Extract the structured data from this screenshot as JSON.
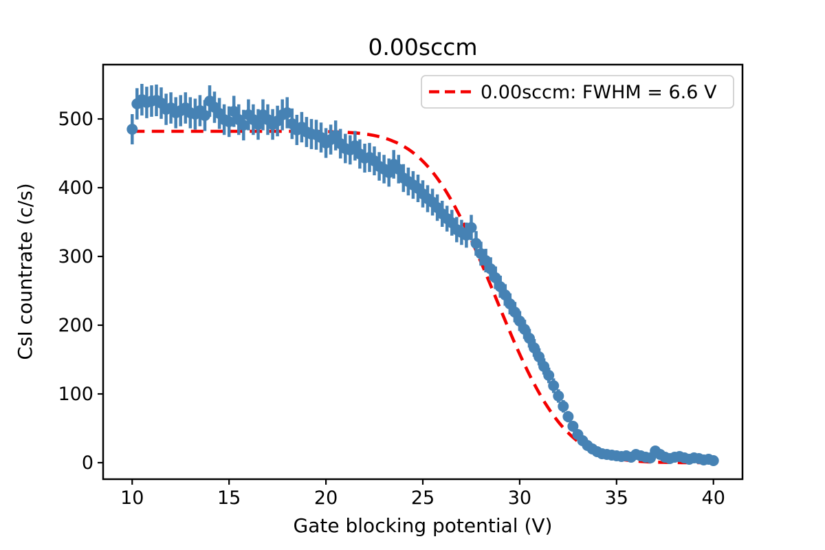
{
  "figure": {
    "title": "0.00sccm",
    "xlabel": "Gate blocking potential (V)",
    "ylabel": "CsI countrate (c/s)",
    "legend": {
      "label": "0.00sccm: FWHM = 6.6 V",
      "line_color": "#f40000",
      "line_style": "dashed",
      "position": "upper right"
    }
  },
  "colors": {
    "data_points": "#4682B4",
    "fit_line": "#f40000",
    "axes": "#000000",
    "background": "#ffffff",
    "legend_border": "#cfcfcf"
  },
  "chart_data": {
    "type": "scatter",
    "title": "0.00sccm",
    "xlabel": "Gate blocking potential (V)",
    "ylabel": "CsI countrate (c/s)",
    "xlim": [
      8.5,
      41.5
    ],
    "ylim": [
      -24,
      579
    ],
    "xticks": [
      10,
      15,
      20,
      25,
      30,
      35,
      40
    ],
    "yticks": [
      0,
      100,
      200,
      300,
      400,
      500
    ],
    "grid": false,
    "legend_position": "upper right",
    "series": [
      {
        "name": "measured-countrate",
        "type": "errorbar-scatter",
        "color": "#4682B4",
        "marker": "circle",
        "x_start": 10.0,
        "x_step": 0.25,
        "y": [
          485,
          522,
          528,
          524,
          526,
          527,
          523,
          514,
          516,
          509,
          512,
          516,
          509,
          507,
          512,
          505,
          526,
          517,
          508,
          499,
          496,
          511,
          499,
          491,
          506,
          499,
          492,
          506,
          499,
          492,
          497,
          506,
          509,
          493,
          484,
          488,
          481,
          478,
          477,
          473,
          465,
          470,
          476,
          464,
          457,
          455,
          461,
          449,
          443,
          444,
          439,
          431,
          427,
          422,
          434,
          427,
          414,
          409,
          404,
          399,
          391,
          384,
          379,
          371,
          362,
          355,
          349,
          339,
          335,
          331,
          342,
          319,
          304,
          294,
          282,
          269,
          256,
          244,
          231,
          219,
          206,
          194,
          181,
          167,
          154,
          140,
          127,
          112,
          97,
          82,
          67,
          53,
          41,
          32,
          25,
          20,
          16,
          13,
          12,
          11,
          10,
          9,
          10,
          8,
          12,
          10,
          8,
          7,
          17,
          12,
          8,
          6,
          8,
          9,
          7,
          5,
          7,
          6,
          4,
          5,
          3
        ],
        "yerr_model": "sqrt(y)"
      },
      {
        "name": "sigmoid-fit",
        "type": "line",
        "style": "dashed",
        "color": "#f40000",
        "legend_label": "0.00sccm: FWHM = 6.6 V",
        "fwhm_v": 6.6,
        "model": "y = A/2 * erfc((x - x0)/(sigma*sqrt(2)))",
        "params": {
          "A": 482,
          "x0": 28.75,
          "sigma": 2.8
        },
        "x_range": [
          10,
          40
        ]
      }
    ]
  }
}
